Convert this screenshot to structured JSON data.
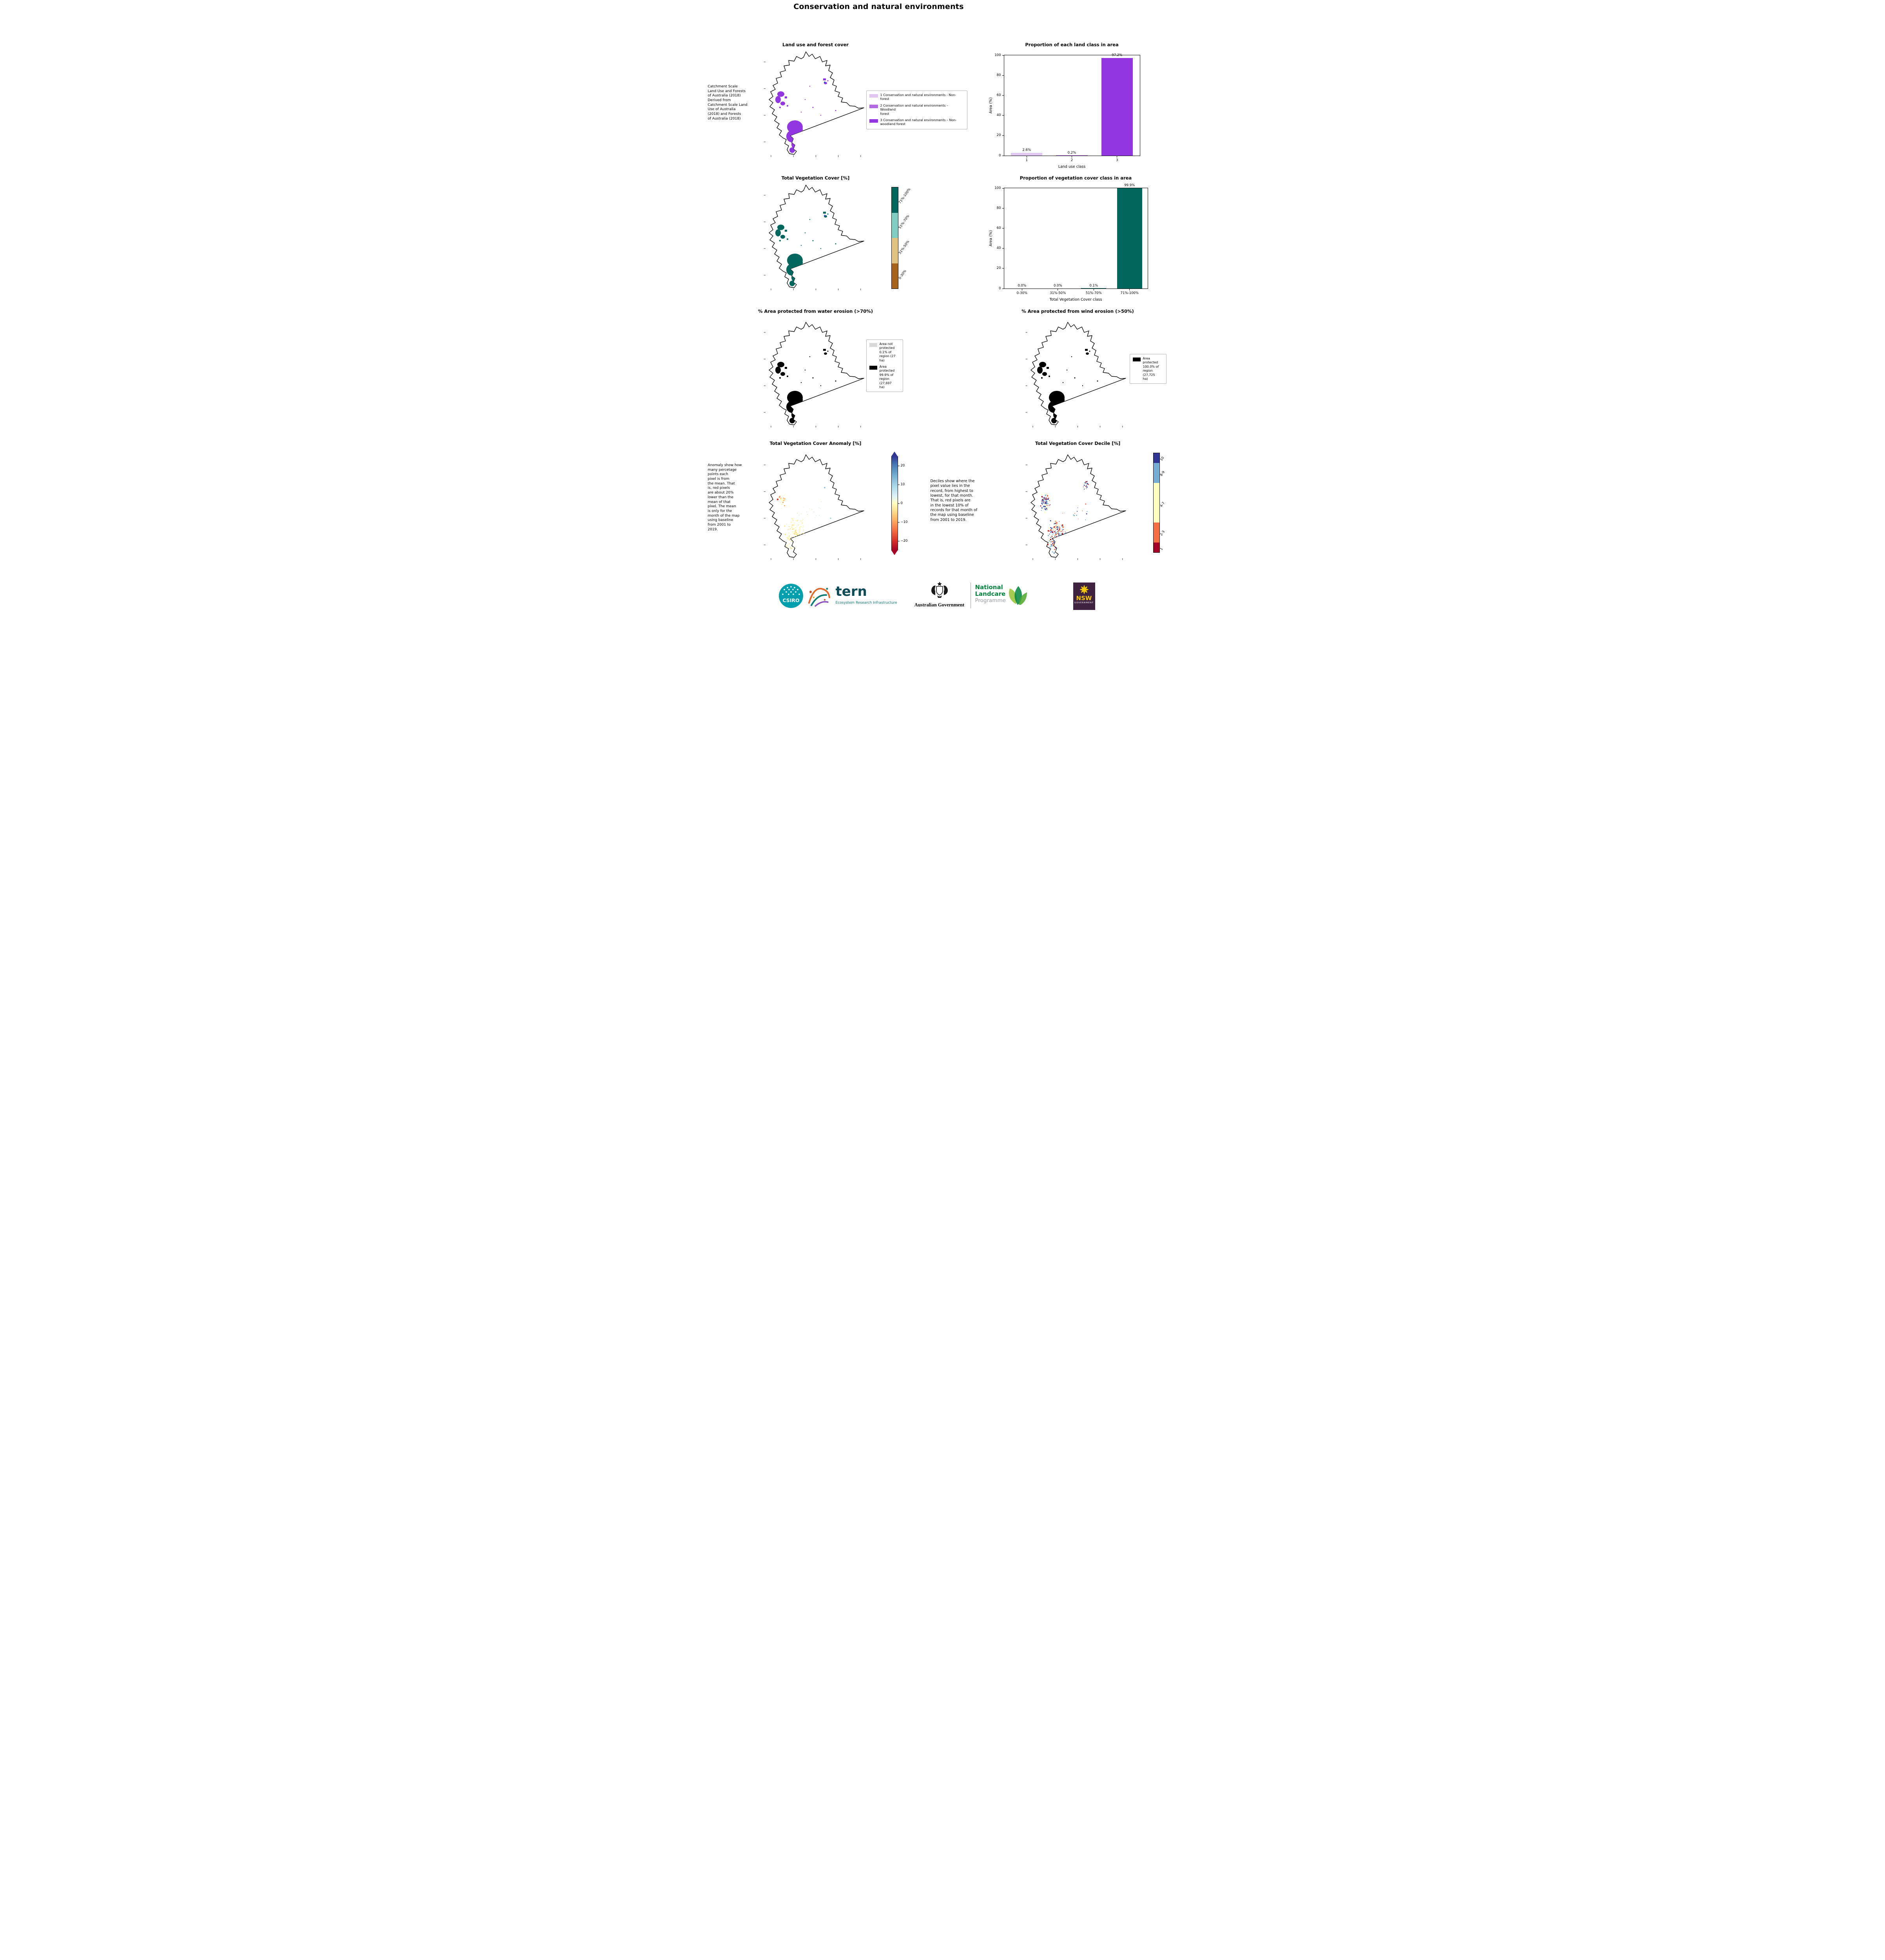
{
  "page": {
    "title": "Conservation and natural environments"
  },
  "panels": {
    "land_use": {
      "title": "Land use and forest cover",
      "caption": " Catchment Scale\nLand Use and Forests\nof Australia (2018)\nDerived from\nCatchment Scale Land\nUse of Australia\n(2018) and Forests\nof Australia (2018)",
      "map_color": "#9136e0",
      "legend": [
        {
          "label": "1 Conservation and natural environments - Non-\nforest",
          "color": "#dfc7f2"
        },
        {
          "label": "2 Conservation and natural environments – Woodland\nforest",
          "color": "#b16be0"
        },
        {
          "label": "3 Conservation and natural environments – Non-\nwoodland forest",
          "color": "#9136e0"
        }
      ]
    },
    "veg_cover": {
      "title": "Total Vegetation Cover [%]",
      "map_color": "#01665e",
      "colorbar": [
        {
          "label": "71%-100%",
          "color": "#01665e"
        },
        {
          "label": "51%-70%",
          "color": "#80cdc1"
        },
        {
          "label": "31%-50%",
          "color": "#dfc27d"
        },
        {
          "label": "0-30%",
          "color": "#a6611a"
        }
      ]
    },
    "water_erosion": {
      "title": "% Area protected from water erosion (>70%)",
      "map_color": "#000000",
      "legend": [
        {
          "label": "Area not\nprotected\n0.1% of\nregion (27\nha)",
          "color": "#d9d9d9"
        },
        {
          "label": "Area\nprotected\n99.9% of\nregion\n(27,697\nha)",
          "color": "#000000"
        }
      ]
    },
    "wind_erosion": {
      "title": "% Area protected from wind erosion (>50%)",
      "map_color": "#000000",
      "legend": [
        {
          "label": "Area\nprotected\n100.0% of\nregion\n(27,725\nha)",
          "color": "#000000"
        }
      ]
    },
    "anomaly": {
      "title": "Total Vegetation Cover Anomaly [%]",
      "caption": "Anomaly show how\nmany percetage\npoints each\npixel is from\nthe mean. That\nis, red pixels\nare about 20%\nlower than the\nmean of that\npixel. The mean\nis only for the\nmonth of the map\nusing baseline\nfrom 2001 to\n2019.",
      "colorbar_ticks": [
        "20",
        "10",
        "0",
        "−10",
        "−20"
      ]
    },
    "decile": {
      "title": "Total Vegetation Cover Decile [%]",
      "caption": "Deciles show where the\npixel value lies in the\nrecord, from highest to\nlowest, for that month.\nThat is, red pixels are\nin the lowest 10% of\nrecords for that month of\nthe map using baseline\nfrom 2001 to 2019.",
      "colorbar": [
        {
          "label": "10",
          "color": "#313695"
        },
        {
          "label": "8-9",
          "color": "#74add1"
        },
        {
          "label": "4-7",
          "color": "#ffffbf"
        },
        {
          "label": "2-3",
          "color": "#f46d43"
        },
        {
          "label": "1",
          "color": "#a50026"
        }
      ]
    }
  },
  "chart_data": [
    {
      "type": "bar",
      "title": "Proportion of each land class in area",
      "categories": [
        "1",
        "2",
        "3"
      ],
      "values": [
        2.6,
        0.2,
        97.2
      ],
      "value_labels": [
        "2.6%",
        "0.2%",
        "97.2%"
      ],
      "xlabel": "Land use class",
      "ylabel": "Area (%)",
      "ylim": [
        0,
        100
      ],
      "yticks": [
        0,
        20,
        40,
        60,
        80,
        100
      ],
      "bar_colors": [
        "#dfc7f2",
        "#b16be0",
        "#9136e0"
      ],
      "grid": false,
      "legend_position": "none"
    },
    {
      "type": "bar",
      "title": "Proportion of vegetation cover class in area",
      "categories": [
        "0-30%",
        "31%-50%",
        "51%-70%",
        "71%-100%"
      ],
      "values": [
        0.0,
        0.0,
        0.1,
        99.9
      ],
      "value_labels": [
        "0.0%",
        "0.0%",
        "0.1%",
        "99.9%"
      ],
      "xlabel": "Total Vegetation Cover class",
      "ylabel": "Area (%)",
      "ylim": [
        0,
        100
      ],
      "yticks": [
        0,
        20,
        40,
        60,
        80,
        100
      ],
      "bar_colors": [
        "#01665e",
        "#01665e",
        "#01665e",
        "#01665e"
      ],
      "grid": false,
      "legend_position": "none"
    }
  ],
  "footer": {
    "csiro": "CSIRO",
    "tern": "tern",
    "tern_sub": "Ecosystem Research Infrastructure",
    "aus_gov": "Australian Government",
    "nlp_line1": "National",
    "nlp_line2": "Landcare",
    "nlp_line3": "Programme",
    "nsw": "NSW",
    "nsw_sub": "GOVERNMENT"
  }
}
